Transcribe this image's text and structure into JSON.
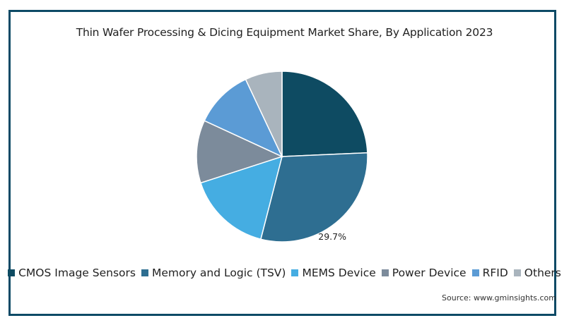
{
  "chart_data": {
    "type": "pie",
    "title": "Thin Wafer Processing & Dicing Equipment Market Share, By Application 2023",
    "categories": [
      "CMOS Image Sensors",
      "Memory and Logic (TSV)",
      "MEMS Device",
      "Power Device",
      "RFID",
      "Others"
    ],
    "values": [
      24.3,
      29.7,
      16.0,
      11.9,
      11.1,
      7.0
    ],
    "colors": [
      "#0e4b62",
      "#2e6e91",
      "#45ade2",
      "#7c8b9b",
      "#5b9bd5",
      "#a9b4bd"
    ],
    "data_labels": [
      "",
      "29.7%",
      "",
      "",
      "",
      ""
    ],
    "legend_position": "bottom",
    "source": "Source: www.gminsights.com"
  }
}
